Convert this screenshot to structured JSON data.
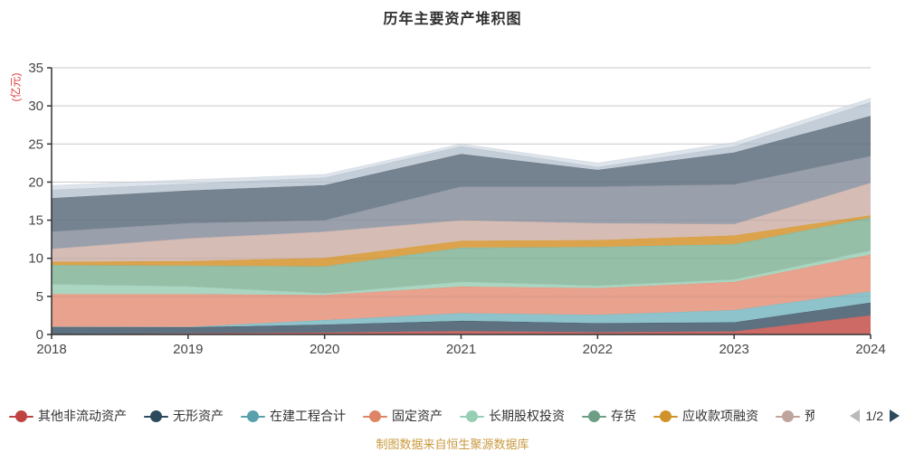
{
  "title": "历年主要资产堆积图",
  "y_axis": {
    "unit_label": "(亿元)",
    "unit_color": "#e23b3b"
  },
  "footer": {
    "text": "制图数据来自恒生聚源数据库",
    "color": "#c9993f"
  },
  "legend": {
    "items": [
      {
        "label": "其他非流动资产",
        "color": "#bf4341",
        "clipped": false
      },
      {
        "label": "无形资产",
        "color": "#2d4a5c",
        "clipped": false
      },
      {
        "label": "在建工程合计",
        "color": "#58a1ac",
        "clipped": false
      },
      {
        "label": "固定资产",
        "color": "#dd8565",
        "clipped": false
      },
      {
        "label": "长期股权投资",
        "color": "#97cfb6",
        "clipped": false
      },
      {
        "label": "存货",
        "color": "#6d9e85",
        "clipped": false
      },
      {
        "label": "应收款项融资",
        "color": "#d0922a",
        "clipped": false
      },
      {
        "label": "预",
        "color": "#bfa49b",
        "clipped": true
      }
    ],
    "pager": {
      "text": "1/2",
      "prev_color": "#b9b9b9",
      "next_color": "#2d4a5c"
    }
  },
  "chart_data": {
    "type": "area",
    "stacked": true,
    "title": "历年主要资产堆积图",
    "ylabel": "(亿元)",
    "x": [
      "2018",
      "2019",
      "2020",
      "2021",
      "2022",
      "2023",
      "2024"
    ],
    "ylim": [
      0,
      35
    ],
    "y_ticks": [
      0,
      5,
      10,
      15,
      20,
      25,
      30,
      35
    ],
    "grid": true,
    "legend_position": "bottom",
    "axis_color": "#333333",
    "grid_color": "#d9d9d9",
    "tick_label_color": "#464646",
    "series": [
      {
        "name": "其他非流动资产",
        "fill": "#ce6a66",
        "line": "#bf4341",
        "values": [
          0.05,
          0.15,
          0.25,
          0.45,
          0.3,
          0.4,
          2.5
        ]
      },
      {
        "name": "无形资产",
        "fill": "#5d7181",
        "line": "#2d4a5c",
        "values": [
          0.95,
          0.8,
          1.05,
          1.35,
          1.2,
          1.2,
          1.7
        ]
      },
      {
        "name": "在建工程合计",
        "fill": "#8fc3cb",
        "line": "#58a1ac",
        "values": [
          0.02,
          0.05,
          0.6,
          1.0,
          1.1,
          1.6,
          1.45
        ]
      },
      {
        "name": "固定资产",
        "fill": "#e8a28e",
        "line": "#dd8565",
        "values": [
          4.28,
          4.3,
          3.3,
          3.5,
          3.5,
          3.7,
          4.85
        ]
      },
      {
        "name": "长期股权投资",
        "fill": "#a9d5c1",
        "line": "#97cfb6",
        "values": [
          1.3,
          1.0,
          0.2,
          0.6,
          0.3,
          0.3,
          0.5
        ]
      },
      {
        "name": "存货",
        "fill": "#95bfa6",
        "line": "#6d9e85",
        "values": [
          2.5,
          2.75,
          3.55,
          4.5,
          5.1,
          4.65,
          4.35
        ]
      },
      {
        "name": "应收款项融资",
        "fill": "#dba44c",
        "line": "#d0922a",
        "values": [
          0.45,
          0.6,
          1.1,
          0.9,
          0.9,
          1.15,
          0.3
        ]
      },
      {
        "name": "预",
        "fill": "#d5bcb5",
        "line": "#bfa49b",
        "values": [
          1.7,
          2.95,
          3.45,
          2.7,
          2.2,
          1.5,
          4.25
        ]
      },
      {
        "name": "",
        "fill": "#999fab",
        "line": "#868e9c",
        "values": [
          2.25,
          2.0,
          1.5,
          4.4,
          4.8,
          5.2,
          3.5
        ]
      },
      {
        "name": "",
        "fill": "#75828f",
        "line": "#5c6a77",
        "values": [
          4.4,
          4.3,
          4.6,
          4.3,
          2.2,
          4.2,
          5.3
        ]
      },
      {
        "name": "",
        "fill": "#c4ced9",
        "line": "#aab6c3",
        "values": [
          1.1,
          0.9,
          1.0,
          1.0,
          0.4,
          0.8,
          1.8
        ]
      },
      {
        "name": "",
        "fill": "#dee4eb",
        "line": "#c8cfd8",
        "values": [
          0.55,
          0.5,
          0.4,
          0.3,
          0.5,
          0.5,
          0.5
        ]
      }
    ]
  }
}
